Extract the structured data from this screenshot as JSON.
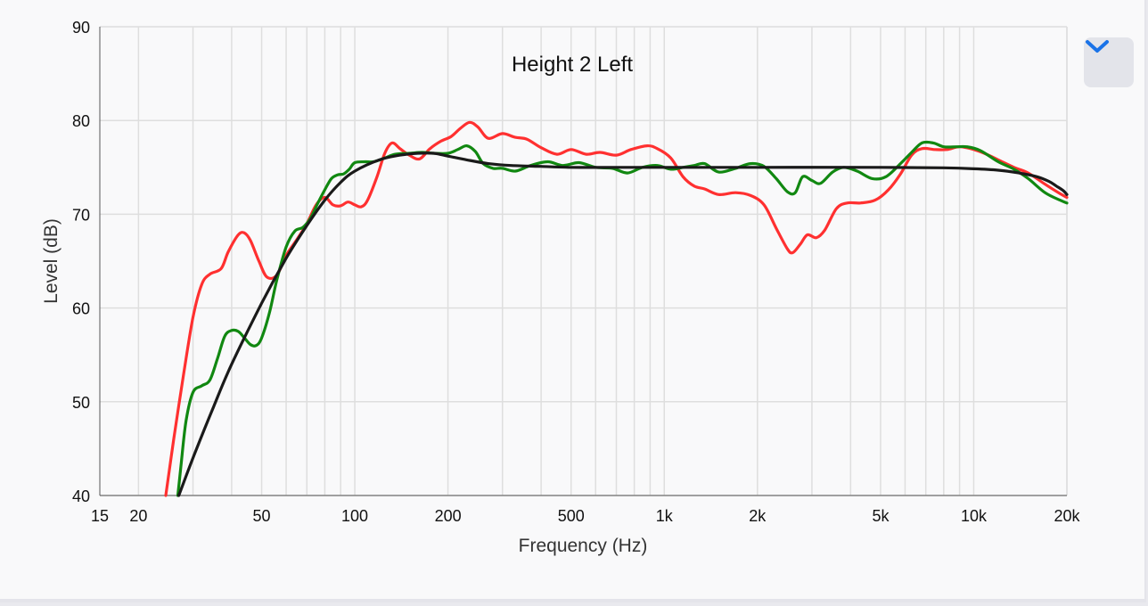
{
  "chart_data": {
    "type": "line",
    "title": "Height 2 Left",
    "xlabel": "Frequency (Hz)",
    "ylabel": "Level (dB)",
    "xscale": "log",
    "xlim": [
      15,
      20000
    ],
    "ylim": [
      40,
      90
    ],
    "grid": true,
    "x_ticks": [
      {
        "value": 15,
        "label": "15"
      },
      {
        "value": 20,
        "label": "20"
      },
      {
        "value": 50,
        "label": "50"
      },
      {
        "value": 100,
        "label": "100"
      },
      {
        "value": 200,
        "label": "200"
      },
      {
        "value": 500,
        "label": "500"
      },
      {
        "value": 1000,
        "label": "1k"
      },
      {
        "value": 2000,
        "label": "2k"
      },
      {
        "value": 5000,
        "label": "5k"
      },
      {
        "value": 10000,
        "label": "10k"
      },
      {
        "value": 20000,
        "label": "20k"
      }
    ],
    "y_ticks": [
      40,
      50,
      60,
      70,
      80,
      90
    ],
    "series": [
      {
        "color": "#ff3030",
        "points": [
          [
            24.5,
            40
          ],
          [
            26,
            46
          ],
          [
            28,
            53
          ],
          [
            30,
            59
          ],
          [
            32,
            62.5
          ],
          [
            34,
            63.6
          ],
          [
            37,
            64.2
          ],
          [
            39,
            66
          ],
          [
            42,
            67.8
          ],
          [
            44,
            68
          ],
          [
            46,
            67.2
          ],
          [
            49,
            65
          ],
          [
            52,
            63.3
          ],
          [
            56,
            63.5
          ],
          [
            60,
            65.6
          ],
          [
            65,
            67.3
          ],
          [
            70,
            69
          ],
          [
            75,
            71
          ],
          [
            80,
            71.8
          ],
          [
            85,
            71
          ],
          [
            90,
            70.9
          ],
          [
            95,
            71.3
          ],
          [
            100,
            71
          ],
          [
            105,
            70.8
          ],
          [
            110,
            71.5
          ],
          [
            118,
            74
          ],
          [
            125,
            76.5
          ],
          [
            132,
            77.6
          ],
          [
            140,
            77
          ],
          [
            150,
            76.3
          ],
          [
            162,
            75.9
          ],
          [
            175,
            77
          ],
          [
            190,
            77.8
          ],
          [
            205,
            78.3
          ],
          [
            220,
            79.2
          ],
          [
            235,
            79.8
          ],
          [
            250,
            79.3
          ],
          [
            270,
            78.1
          ],
          [
            300,
            78.6
          ],
          [
            330,
            78.2
          ],
          [
            360,
            78
          ],
          [
            400,
            77.1
          ],
          [
            450,
            76.4
          ],
          [
            500,
            76.9
          ],
          [
            560,
            76.4
          ],
          [
            620,
            76.6
          ],
          [
            700,
            76.3
          ],
          [
            780,
            76.9
          ],
          [
            880,
            77.3
          ],
          [
            950,
            77
          ],
          [
            1050,
            76
          ],
          [
            1150,
            74
          ],
          [
            1250,
            73
          ],
          [
            1350,
            72.7
          ],
          [
            1500,
            72.1
          ],
          [
            1700,
            72.3
          ],
          [
            1900,
            72
          ],
          [
            2100,
            71
          ],
          [
            2300,
            68.5
          ],
          [
            2500,
            66.3
          ],
          [
            2600,
            65.9
          ],
          [
            2750,
            66.8
          ],
          [
            2900,
            67.8
          ],
          [
            3100,
            67.5
          ],
          [
            3300,
            68.3
          ],
          [
            3600,
            70.6
          ],
          [
            3900,
            71.2
          ],
          [
            4300,
            71.2
          ],
          [
            4800,
            71.5
          ],
          [
            5300,
            72.6
          ],
          [
            5800,
            74.3
          ],
          [
            6300,
            76.3
          ],
          [
            6800,
            77
          ],
          [
            7500,
            76.9
          ],
          [
            8200,
            76.9
          ],
          [
            9000,
            77.2
          ],
          [
            10000,
            76.9
          ],
          [
            11000,
            76.4
          ],
          [
            12000,
            75.8
          ],
          [
            13500,
            75
          ],
          [
            15000,
            74.4
          ],
          [
            17000,
            73.2
          ],
          [
            19000,
            72.2
          ],
          [
            20000,
            71.8
          ]
        ]
      },
      {
        "color": "#118811",
        "points": [
          [
            26.8,
            40
          ],
          [
            27.5,
            43.5
          ],
          [
            28.5,
            48
          ],
          [
            30,
            51
          ],
          [
            32,
            51.7
          ],
          [
            34,
            52.3
          ],
          [
            36,
            54.6
          ],
          [
            38,
            57
          ],
          [
            40,
            57.6
          ],
          [
            42,
            57.5
          ],
          [
            44,
            56.8
          ],
          [
            46,
            56.1
          ],
          [
            48,
            56
          ],
          [
            50,
            56.8
          ],
          [
            53,
            59.5
          ],
          [
            56,
            63
          ],
          [
            60,
            66.5
          ],
          [
            64,
            68.2
          ],
          [
            68,
            68.6
          ],
          [
            72,
            69.6
          ],
          [
            76,
            71.2
          ],
          [
            80,
            72.6
          ],
          [
            84,
            73.8
          ],
          [
            88,
            74.2
          ],
          [
            92,
            74.3
          ],
          [
            96,
            74.8
          ],
          [
            100,
            75.5
          ],
          [
            108,
            75.6
          ],
          [
            115,
            75.6
          ],
          [
            125,
            76
          ],
          [
            135,
            76.4
          ],
          [
            150,
            76.5
          ],
          [
            165,
            76.6
          ],
          [
            180,
            76.5
          ],
          [
            200,
            76.5
          ],
          [
            215,
            76.9
          ],
          [
            230,
            77.3
          ],
          [
            245,
            76.7
          ],
          [
            260,
            75.4
          ],
          [
            280,
            74.9
          ],
          [
            300,
            74.9
          ],
          [
            330,
            74.6
          ],
          [
            370,
            75.2
          ],
          [
            420,
            75.6
          ],
          [
            470,
            75.2
          ],
          [
            530,
            75.5
          ],
          [
            600,
            75
          ],
          [
            680,
            74.9
          ],
          [
            760,
            74.4
          ],
          [
            850,
            75
          ],
          [
            950,
            75.2
          ],
          [
            1050,
            74.8
          ],
          [
            1150,
            75
          ],
          [
            1250,
            75.2
          ],
          [
            1350,
            75.4
          ],
          [
            1500,
            74.5
          ],
          [
            1700,
            74.9
          ],
          [
            1900,
            75.4
          ],
          [
            2100,
            75.1
          ],
          [
            2300,
            73.8
          ],
          [
            2500,
            72.4
          ],
          [
            2650,
            72.3
          ],
          [
            2800,
            74
          ],
          [
            3000,
            73.6
          ],
          [
            3200,
            73.3
          ],
          [
            3500,
            74.5
          ],
          [
            3800,
            75
          ],
          [
            4200,
            74.6
          ],
          [
            4700,
            73.8
          ],
          [
            5200,
            74
          ],
          [
            5800,
            75.4
          ],
          [
            6300,
            76.6
          ],
          [
            6800,
            77.6
          ],
          [
            7400,
            77.6
          ],
          [
            8000,
            77.2
          ],
          [
            8800,
            77.2
          ],
          [
            9500,
            77.2
          ],
          [
            10500,
            76.8
          ],
          [
            12000,
            75.6
          ],
          [
            13500,
            74.8
          ],
          [
            15000,
            73.8
          ],
          [
            17000,
            72.3
          ],
          [
            19000,
            71.5
          ],
          [
            20000,
            71.2
          ]
        ]
      },
      {
        "color": "#1a1a1a",
        "points": [
          [
            27,
            40
          ],
          [
            30,
            44
          ],
          [
            35,
            49.5
          ],
          [
            40,
            54
          ],
          [
            50,
            60.5
          ],
          [
            60,
            65.3
          ],
          [
            70,
            68.8
          ],
          [
            80,
            71.5
          ],
          [
            90,
            73.4
          ],
          [
            100,
            74.6
          ],
          [
            120,
            75.8
          ],
          [
            140,
            76.3
          ],
          [
            160,
            76.5
          ],
          [
            180,
            76.5
          ],
          [
            200,
            76.2
          ],
          [
            230,
            75.8
          ],
          [
            270,
            75.4
          ],
          [
            320,
            75.2
          ],
          [
            400,
            75.1
          ],
          [
            500,
            75
          ],
          [
            700,
            75
          ],
          [
            1000,
            75
          ],
          [
            2000,
            75
          ],
          [
            5000,
            75
          ],
          [
            8000,
            74.95
          ],
          [
            10000,
            74.85
          ],
          [
            12000,
            74.7
          ],
          [
            14000,
            74.4
          ],
          [
            16000,
            74
          ],
          [
            17500,
            73.5
          ],
          [
            18500,
            73
          ],
          [
            19500,
            72.5
          ],
          [
            20000,
            72.1
          ]
        ]
      }
    ]
  },
  "controls": {
    "collapse_icon": "chevron-down-icon",
    "accent_color": "#1a73e8"
  }
}
